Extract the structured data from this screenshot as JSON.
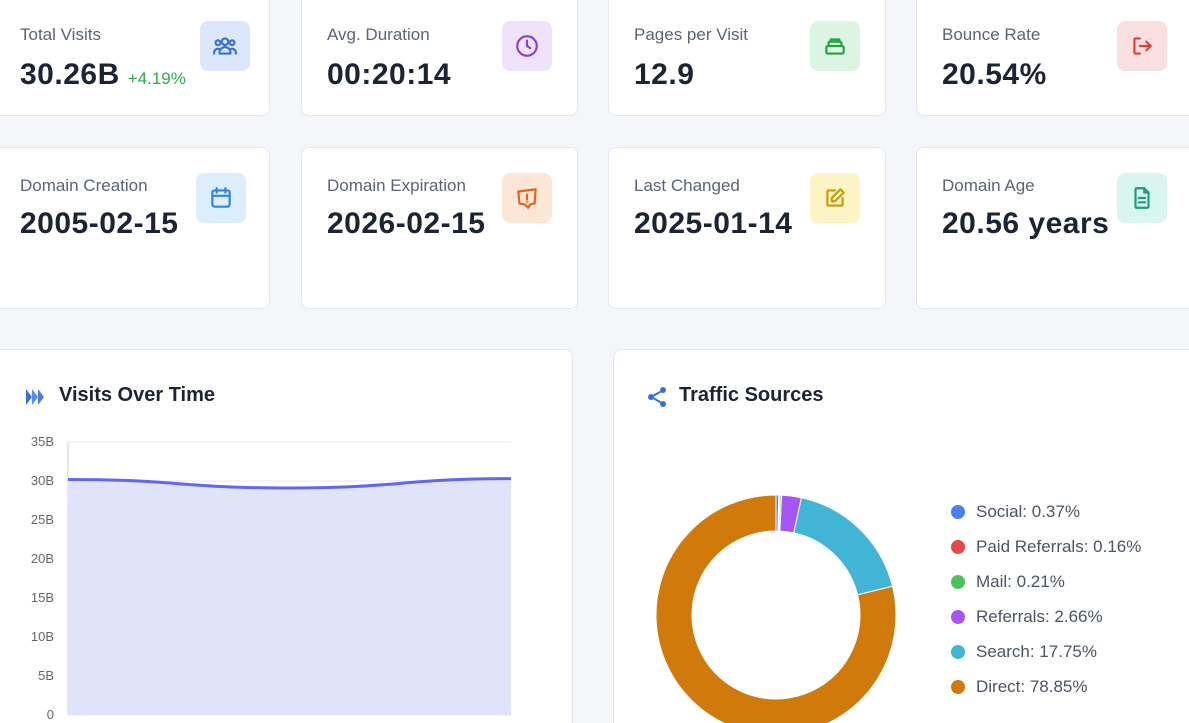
{
  "stats_row1": [
    {
      "label": "Total Visits",
      "value": "30.26B",
      "change": "+4.19%",
      "icon": "users-icon",
      "icon_bg": "#dbe7fb",
      "icon_color": "#3b6fd8"
    },
    {
      "label": "Avg. Duration",
      "value": "00:20:14",
      "icon": "clock-icon",
      "icon_bg": "#efe3fb",
      "icon_color": "#8b3fd9"
    },
    {
      "label": "Pages per Visit",
      "value": "12.9",
      "icon": "stack-icon",
      "icon_bg": "#dcf5e2",
      "icon_color": "#23a046"
    },
    {
      "label": "Bounce Rate",
      "value": "20.54%",
      "icon": "exit-icon",
      "icon_bg": "#fadfe0",
      "icon_color": "#e23c3c"
    }
  ],
  "stats_row2": [
    {
      "label": "Domain Creation",
      "value": "2005-02-15",
      "icon": "calendar-icon",
      "icon_bg": "#dcedfb",
      "icon_color": "#2d86d8"
    },
    {
      "label": "Domain Expiration",
      "value": "2026-02-15",
      "icon": "alert-bubble-icon",
      "icon_bg": "#fce6d6",
      "icon_color": "#e0641b"
    },
    {
      "label": "Last Changed",
      "value": "2025-01-14",
      "icon": "edit-icon",
      "icon_bg": "#fcf4c5",
      "icon_color": "#c89a06"
    },
    {
      "label": "Domain Age",
      "value": "20.56 years",
      "icon": "document-icon",
      "icon_bg": "#d8f6ee",
      "icon_color": "#1e9b7a"
    }
  ],
  "visits_panel": {
    "title": "Visits Over Time"
  },
  "traffic_panel": {
    "title": "Traffic Sources"
  },
  "chart_data": [
    {
      "type": "area",
      "title": "Visits Over Time",
      "ylabel": "",
      "xlabel": "",
      "ylim": [
        0,
        35
      ],
      "y_unit": "B",
      "y_ticks": [
        "35B",
        "30B",
        "25B",
        "20B",
        "15B",
        "10B",
        "5B",
        "0"
      ],
      "series": [
        {
          "name": "Visits",
          "values": [
            30.2,
            29.1,
            30.3
          ],
          "color": "#6366f1",
          "fill": "#e0e4fb"
        }
      ]
    },
    {
      "type": "pie",
      "title": "Traffic Sources",
      "donut": true,
      "legend": "right",
      "slices": [
        {
          "name": "Social",
          "value": 0.37,
          "color": "#4a80f0",
          "legend_text": "Social: 0.37%"
        },
        {
          "name": "Paid Referrals",
          "value": 0.16,
          "color": "#e54848",
          "legend_text": "Paid Referrals: 0.16%"
        },
        {
          "name": "Mail",
          "value": 0.21,
          "color": "#4cc35a",
          "legend_text": "Mail: 0.21%"
        },
        {
          "name": "Referrals",
          "value": 2.66,
          "color": "#a855f7",
          "legend_text": "Referrals: 2.66%"
        },
        {
          "name": "Search",
          "value": 17.75,
          "color": "#42b4d6",
          "legend_text": "Search: 17.75%"
        },
        {
          "name": "Direct",
          "value": 78.85,
          "color": "#d07a0c",
          "legend_text": "Direct: 78.85%"
        }
      ]
    }
  ]
}
